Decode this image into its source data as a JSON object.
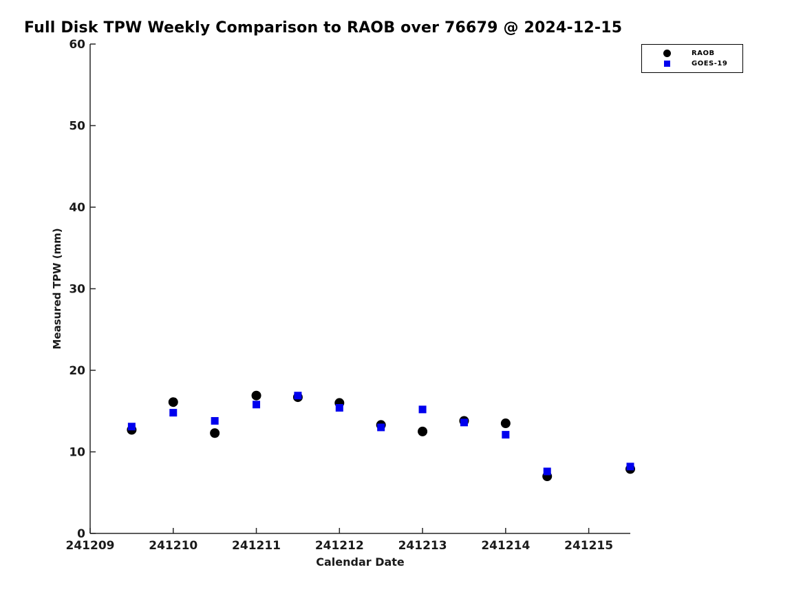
{
  "chart_data": {
    "type": "scatter",
    "title": "Full Disk TPW Weekly Comparison to RAOB over 76679 @ 2024-12-15",
    "xlabel": "Calendar Date",
    "ylabel": "Measured TPW (mm)",
    "xlim": [
      241209,
      241215.5
    ],
    "ylim": [
      0,
      60
    ],
    "x_ticks": [
      241209,
      241210,
      241211,
      241212,
      241213,
      241214,
      241215
    ],
    "x_tick_labels": [
      "241209",
      "241210",
      "241211",
      "241212",
      "241213",
      "241214",
      "241215"
    ],
    "y_ticks": [
      0,
      10,
      20,
      30,
      40,
      50,
      60
    ],
    "y_tick_labels": [
      "0",
      "10",
      "20",
      "30",
      "40",
      "50",
      "60"
    ],
    "grid": false,
    "legend_position": "top-right",
    "axis_color": "#262626",
    "series": [
      {
        "name": "RAOB",
        "marker": "circle",
        "color": "#000000",
        "x": [
          241209.5,
          241210,
          241210.5,
          241211,
          241211.5,
          241212,
          241212.5,
          241213,
          241213.5,
          241214,
          241214.5,
          241215.5
        ],
        "y": [
          12.7,
          16.1,
          12.3,
          16.9,
          16.7,
          16.0,
          13.3,
          12.5,
          13.8,
          13.5,
          7.0,
          7.9
        ]
      },
      {
        "name": "GOES-19",
        "marker": "square",
        "color": "#0000ee",
        "x": [
          241209.5,
          241210,
          241210.5,
          241211,
          241211.5,
          241212,
          241212.5,
          241213,
          241213.5,
          241214,
          241214.5,
          241215.5
        ],
        "y": [
          13.1,
          14.8,
          13.8,
          15.8,
          16.9,
          15.4,
          13.0,
          15.2,
          13.6,
          12.1,
          7.6,
          8.2
        ]
      }
    ]
  }
}
